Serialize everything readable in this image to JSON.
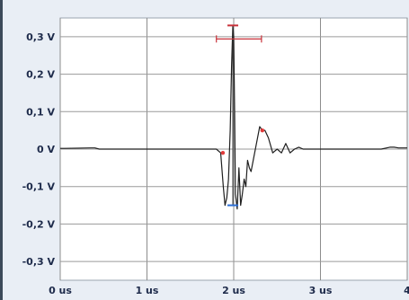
{
  "chart_data": {
    "type": "line",
    "title": "",
    "xlabel": "",
    "ylabel": "",
    "x_unit": "us",
    "y_unit": "V",
    "xlim": [
      0,
      4
    ],
    "ylim": [
      -0.35,
      0.35
    ],
    "grid": true,
    "x_ticks": [
      {
        "value": 0,
        "label": "0 us"
      },
      {
        "value": 1,
        "label": "1 us"
      },
      {
        "value": 2,
        "label": "2 us"
      },
      {
        "value": 3,
        "label": "3 us"
      },
      {
        "value": 4,
        "label": "4"
      }
    ],
    "y_ticks": [
      {
        "value": 0.3,
        "label": "0,3 V"
      },
      {
        "value": 0.2,
        "label": "0,2 V"
      },
      {
        "value": 0.1,
        "label": "0,1 V"
      },
      {
        "value": 0.0,
        "label": "0 V"
      },
      {
        "value": -0.1,
        "label": "-0,1 V"
      },
      {
        "value": -0.2,
        "label": "-0,2 V"
      },
      {
        "value": -0.3,
        "label": "-0,3 V"
      }
    ],
    "series": [
      {
        "color": "#1f1f1f",
        "x": [
          0.0,
          0.05,
          0.35,
          0.4,
          0.45,
          0.6,
          1.0,
          1.4,
          1.8,
          1.85,
          1.88,
          1.9,
          1.92,
          1.94,
          1.96,
          1.975,
          1.99,
          2.0,
          2.01,
          2.02,
          2.04,
          2.06,
          2.08,
          2.1,
          2.12,
          2.14,
          2.16,
          2.18,
          2.2,
          2.25,
          2.3,
          2.33,
          2.36,
          2.4,
          2.45,
          2.5,
          2.55,
          2.6,
          2.65,
          2.7,
          2.75,
          2.8,
          2.9,
          3.0,
          3.2,
          3.5,
          3.7,
          3.8,
          3.85,
          3.9,
          4.0
        ],
        "y": [
          0.002,
          0.002,
          0.003,
          0.003,
          0.0,
          0.0,
          0.0,
          0.0,
          0.0,
          -0.01,
          -0.1,
          -0.15,
          -0.13,
          -0.08,
          0.05,
          0.22,
          0.33,
          0.3,
          0.1,
          -0.12,
          -0.16,
          -0.05,
          -0.15,
          -0.12,
          -0.08,
          -0.1,
          -0.03,
          -0.05,
          -0.06,
          0.0,
          0.06,
          0.05,
          0.05,
          0.03,
          -0.01,
          0.0,
          -0.01,
          0.015,
          -0.01,
          0.0,
          0.005,
          0.0,
          0.0,
          0.0,
          0.0,
          0.0,
          0.0,
          0.005,
          0.005,
          0.003,
          0.003
        ]
      }
    ],
    "markers": [
      {
        "x": 1.875,
        "y": -0.01,
        "color": "#e03a3a"
      },
      {
        "x": 2.33,
        "y": 0.05,
        "color": "#e03a3a"
      }
    ],
    "measurement_cursor": {
      "x_center": 1.99,
      "x_low": 1.8,
      "x_high": 2.32,
      "y_top": 0.33,
      "y_bottom": -0.15,
      "color_top": "#c8323a",
      "color_bottom": "#2c6fd6"
    }
  }
}
